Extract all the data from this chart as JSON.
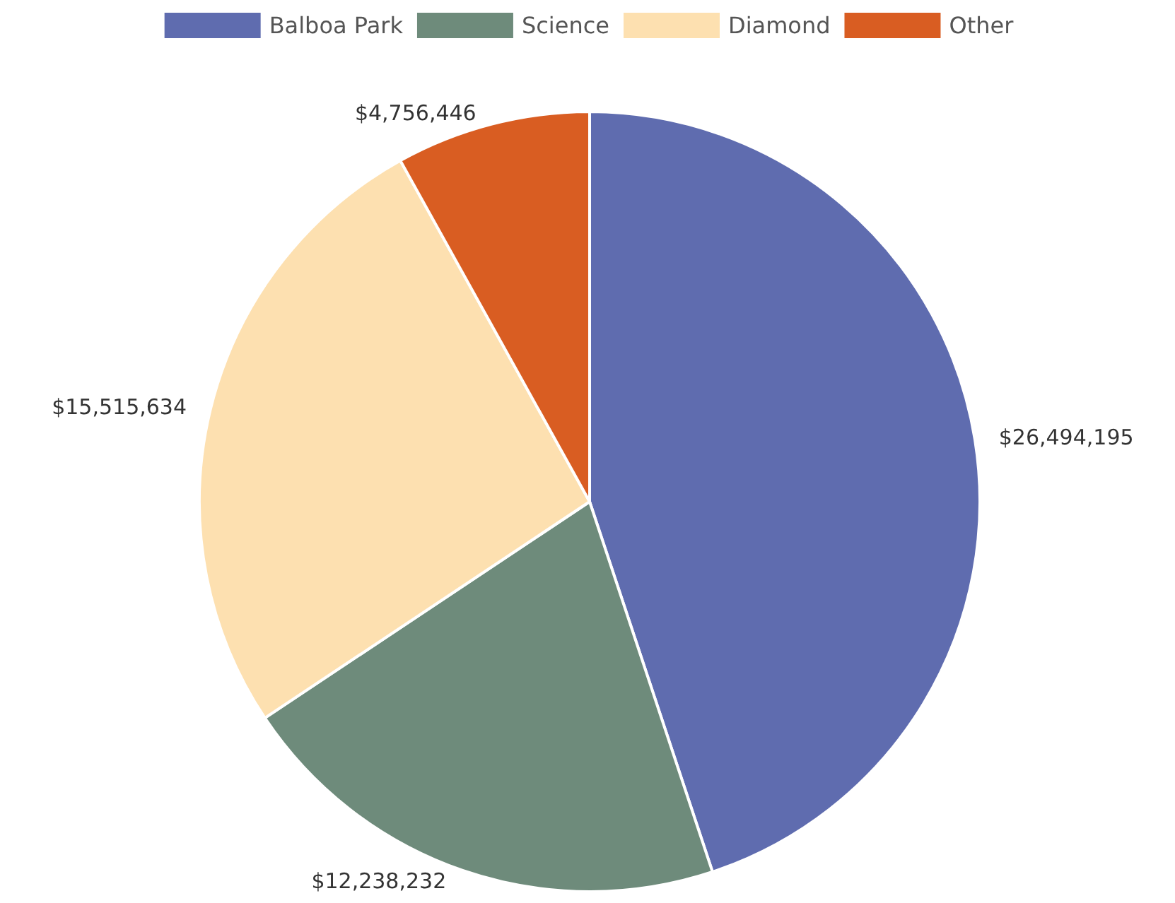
{
  "chart_data": {
    "type": "pie",
    "categories": [
      "Balboa Park",
      "Science",
      "Diamond",
      "Other"
    ],
    "values": [
      26494195,
      12238232,
      15515634,
      4756446
    ],
    "colors": [
      "#5f6caf",
      "#6e8b7b",
      "#fde0b0",
      "#d95d22"
    ],
    "value_labels": [
      "$26,494,195",
      "$12,238,232",
      "$15,515,634",
      "$4,756,446"
    ],
    "legend": "top"
  }
}
